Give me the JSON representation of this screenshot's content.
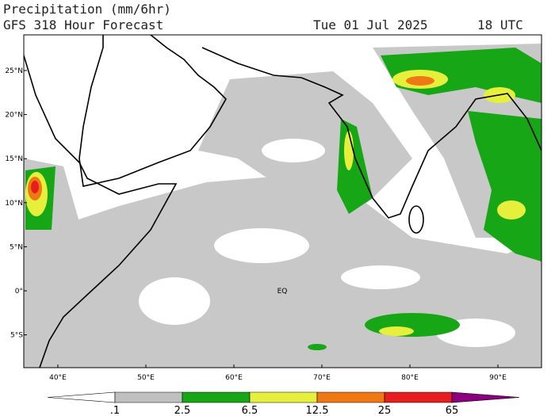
{
  "header": {
    "title": "Precipitation (mm/6hr)",
    "subtitle": "GFS 318 Hour Forecast",
    "date": "Tue 01 Jul 2025",
    "time": "18 UTC"
  },
  "map": {
    "lat_labels": [
      "25°N",
      "20°N",
      "15°N",
      "10°N",
      "5°N",
      "0°",
      "5°S"
    ],
    "lon_labels": [
      "40°E",
      "50°E",
      "60°E",
      "70°E",
      "80°E",
      "90°E"
    ],
    "equator_label": "EQ"
  },
  "colorbar": {
    "levels": [
      ".1",
      "2.5",
      "6.5",
      "12.5",
      "25",
      "65"
    ],
    "colors": [
      "#ffffff",
      "#c0c0c0",
      "#16a616",
      "#e6f03c",
      "#f07814",
      "#e61e1e",
      "#8c0080"
    ]
  }
}
